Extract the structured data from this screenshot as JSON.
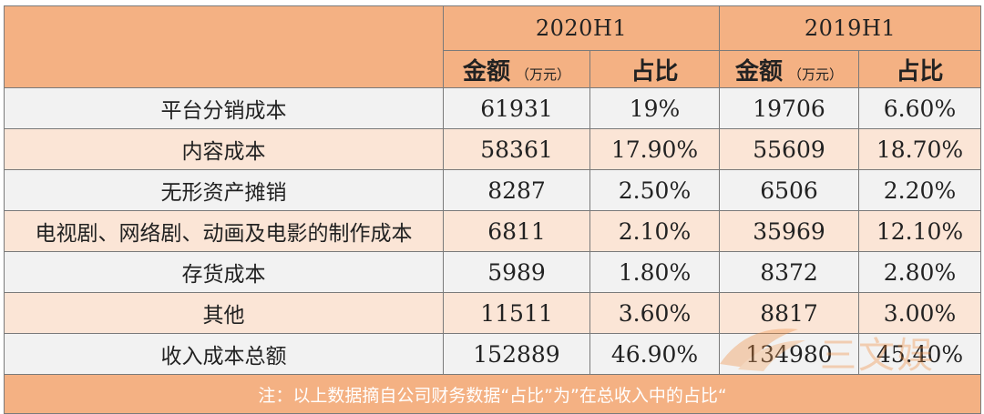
{
  "table": {
    "periods": [
      "2020H1",
      "2019H1"
    ],
    "col_amount": "金额",
    "col_unit": "（万元）",
    "col_ratio": "占比",
    "rows": [
      {
        "label": "平台分销成本",
        "amt_2020": "61931",
        "pct_2020": "19%",
        "amt_2019": "19706",
        "pct_2019": "6.60%"
      },
      {
        "label": "内容成本",
        "amt_2020": "58361",
        "pct_2020": "17.90%",
        "amt_2019": "55609",
        "pct_2019": "18.70%"
      },
      {
        "label": "无形资产摊销",
        "amt_2020": "8287",
        "pct_2020": "2.50%",
        "amt_2019": "6506",
        "pct_2019": "2.20%"
      },
      {
        "label": "电视剧、网络剧、动画及电影的制作成本",
        "amt_2020": "6811",
        "pct_2020": "2.10%",
        "amt_2019": "35969",
        "pct_2019": "12.10%"
      },
      {
        "label": "存货成本",
        "amt_2020": "5989",
        "pct_2020": "1.80%",
        "amt_2019": "8372",
        "pct_2019": "2.80%"
      },
      {
        "label": "其他",
        "amt_2020": "11511",
        "pct_2020": "3.60%",
        "amt_2019": "8817",
        "pct_2019": "3.00%"
      },
      {
        "label": "收入成本总额",
        "amt_2020": "152889",
        "pct_2020": "46.90%",
        "amt_2019": "134980",
        "pct_2019": "45.40%"
      }
    ],
    "note": "注：以上数据摘自公司财务数据“占比”为”在总收入中的占比“"
  },
  "watermark": {
    "text": "三文娱",
    "color": "#f08a3a"
  },
  "colors": {
    "header_bg": "#f4b183",
    "row_gray": "#f2f2f2",
    "row_peach": "#fbe5d6",
    "border": "#7a7a7a"
  }
}
